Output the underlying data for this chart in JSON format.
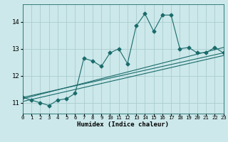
{
  "xlabel": "Humidex (Indice chaleur)",
  "bg_color": "#cce8ea",
  "grid_color": "#aaccce",
  "line_color": "#1a6b6b",
  "x_min": 0,
  "x_max": 23,
  "y_min": 10.6,
  "y_max": 14.65,
  "x_ticks": [
    0,
    1,
    2,
    3,
    4,
    5,
    6,
    7,
    8,
    9,
    10,
    11,
    12,
    13,
    14,
    15,
    16,
    17,
    18,
    19,
    20,
    21,
    22,
    23
  ],
  "y_ticks": [
    11,
    12,
    13,
    14
  ],
  "main_line_x": [
    0,
    1,
    2,
    3,
    4,
    5,
    6,
    7,
    8,
    9,
    10,
    11,
    12,
    13,
    14,
    15,
    16,
    17,
    18,
    19,
    20,
    21,
    22,
    23
  ],
  "main_line_y": [
    11.2,
    11.1,
    11.0,
    10.9,
    11.1,
    11.15,
    11.35,
    12.65,
    12.55,
    12.35,
    12.85,
    13.0,
    12.45,
    13.85,
    14.3,
    13.65,
    14.25,
    14.25,
    13.0,
    13.05,
    12.85,
    12.85,
    13.05,
    12.85
  ],
  "line2_x": [
    0,
    23
  ],
  "line2_y": [
    11.2,
    12.85
  ],
  "line3_x": [
    0,
    23
  ],
  "line3_y": [
    11.05,
    12.75
  ],
  "line4_x": [
    0,
    23
  ],
  "line4_y": [
    11.15,
    13.05
  ]
}
